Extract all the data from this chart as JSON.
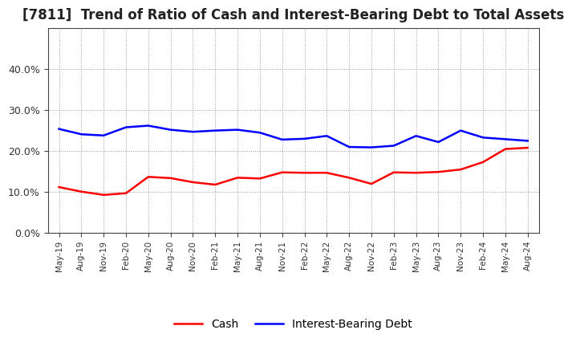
{
  "title": "[7811]  Trend of Ratio of Cash and Interest-Bearing Debt to Total Assets",
  "x_labels": [
    "May-19",
    "Aug-19",
    "Nov-19",
    "Feb-20",
    "May-20",
    "Aug-20",
    "Nov-20",
    "Feb-21",
    "May-21",
    "Aug-21",
    "Nov-21",
    "Feb-22",
    "May-22",
    "Aug-22",
    "Nov-22",
    "Feb-23",
    "May-23",
    "Aug-23",
    "Nov-23",
    "Feb-24",
    "May-24",
    "Aug-24"
  ],
  "cash": [
    0.112,
    0.101,
    0.093,
    0.097,
    0.137,
    0.134,
    0.124,
    0.118,
    0.135,
    0.133,
    0.148,
    0.147,
    0.147,
    0.135,
    0.12,
    0.148,
    0.147,
    0.149,
    0.155,
    0.173,
    0.205,
    0.208
  ],
  "interest_bearing_debt": [
    0.254,
    0.241,
    0.238,
    0.258,
    0.262,
    0.252,
    0.247,
    0.25,
    0.252,
    0.245,
    0.228,
    0.23,
    0.237,
    0.21,
    0.209,
    0.213,
    0.237,
    0.222,
    0.25,
    0.233,
    0.229,
    0.225
  ],
  "cash_color": "#ff0000",
  "debt_color": "#0000ff",
  "ylim": [
    0.0,
    0.5
  ],
  "yticks": [
    0.0,
    0.1,
    0.2,
    0.3,
    0.4
  ],
  "background_color": "#ffffff",
  "grid_color": "#999999",
  "title_fontsize": 12,
  "legend_labels": [
    "Cash",
    "Interest-Bearing Debt"
  ]
}
